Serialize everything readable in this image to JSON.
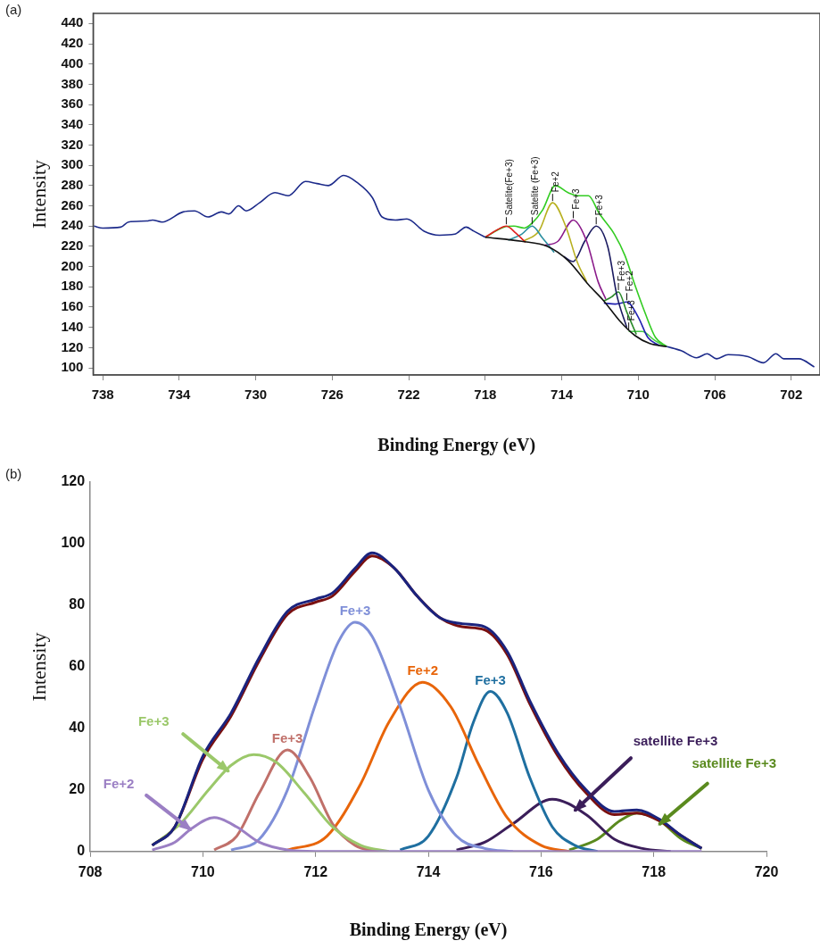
{
  "chart_data": [
    {
      "type": "line",
      "annotations": [
        "(a)"
      ],
      "xlabel": "Binding Energy (eV)",
      "ylabel": "Intensity",
      "xlim": [
        738.5,
        700.5
      ],
      "xticks": [
        738,
        734,
        730,
        726,
        722,
        718,
        714,
        710,
        706,
        702
      ],
      "ylim": [
        93,
        450
      ],
      "yticks": [
        100,
        120,
        140,
        160,
        180,
        200,
        220,
        240,
        260,
        280,
        300,
        320,
        340,
        360,
        380,
        400,
        420,
        440
      ],
      "grid": false,
      "legend": false,
      "marker": "none",
      "line_style": "solid",
      "series": [
        {
          "color": "#1c2a8a",
          "x": [
            738.46,
            738,
            737.06,
            736.66,
            735.7,
            735.4,
            734.9,
            733.8,
            733.2,
            732.5,
            731.8,
            731.4,
            730.9,
            730.5,
            729.8,
            729.0,
            728.3,
            727.4,
            726.8,
            726.2,
            725.4,
            724.7,
            723.9,
            723.4,
            722.7,
            722.1,
            721.2,
            720.4,
            719.6,
            719.0,
            718.6,
            718.0,
            717.03,
            716.5,
            715.96,
            715.55,
            715.0,
            714.34,
            713.67,
            713.13,
            712.6,
            712.06,
            711.25,
            710.7,
            710.18,
            709.64,
            709.1,
            708.51,
            707.76,
            706.95,
            706.4,
            705.9,
            705.3,
            704.26,
            703.46,
            702.8,
            702.4,
            701.6,
            700.8
          ],
          "values": [
            240,
            238,
            239,
            244,
            245,
            246,
            244,
            254,
            255,
            249,
            254,
            252,
            260,
            255,
            263,
            273,
            270,
            284,
            282,
            280,
            290,
            283,
            268,
            249,
            246,
            247,
            235,
            231,
            232,
            239,
            235,
            229,
            null,
            null,
            null,
            null,
            null,
            null,
            null,
            null,
            null,
            null,
            null,
            null,
            null,
            null,
            null,
            121,
            117,
            110,
            114,
            109,
            113,
            111,
            105,
            114,
            109,
            109,
            101
          ]
        },
        {
          "color": "#111111",
          "x": [
            718.0,
            716.1,
            714.75,
            713.67,
            712.6,
            711.8,
            711.0,
            710.18,
            709.4,
            708.51
          ],
          "values": [
            229,
            225,
            220,
            206,
            182,
            166,
            147,
            132,
            124,
            121
          ]
        },
        {
          "name": "Satelite(Fe+3)",
          "color": "#e02020",
          "x": [
            718.0,
            717.4,
            716.9,
            716.4,
            715.9
          ],
          "values": [
            229,
            236,
            240,
            233,
            224
          ]
        },
        {
          "name": "Satelite (Fe+3)",
          "color": "#2a8fa0",
          "x": [
            716.8,
            716.1,
            715.55,
            715.0,
            714.4
          ],
          "values": [
            226,
            232,
            240,
            228,
            214
          ]
        },
        {
          "name": "Fe+2",
          "color": "#b8b020",
          "x": [
            716.0,
            715.2,
            714.48,
            713.8,
            713.2,
            712.7
          ],
          "values": [
            225,
            235,
            263,
            240,
            205,
            185
          ]
        },
        {
          "name": "Fe+3",
          "color": "#8a1a8a",
          "x": [
            714.9,
            714.2,
            713.4,
            712.7,
            712.1,
            711.7
          ],
          "values": [
            221,
            225,
            246,
            225,
            185,
            168
          ]
        },
        {
          "name": "Fe+3",
          "color": "#1a1a60",
          "x": [
            713.9,
            713.4,
            712.8,
            712.2,
            711.6,
            711.1,
            710.6
          ],
          "values": [
            210,
            205,
            225,
            240,
            220,
            170,
            140
          ]
        },
        {
          "name": "Fe+3",
          "color": "#2a8a2a",
          "x": [
            711.8,
            711.4,
            711.04,
            710.6,
            710.1
          ],
          "values": [
            166,
            170,
            175,
            155,
            133
          ]
        },
        {
          "name": "Fe+2",
          "color": "#2020b0",
          "x": [
            711.8,
            711.2,
            710.6,
            710.0,
            709.5,
            708.9
          ],
          "values": [
            164,
            163,
            165,
            150,
            130,
            122
          ]
        },
        {
          "name": "Fe+3",
          "color": "#44cc44",
          "x": [
            710.5,
            709.8,
            709.2,
            708.7
          ],
          "values": [
            136,
            136,
            128,
            122
          ]
        },
        {
          "color": "#33cc22",
          "x": [
            718.0,
            717.03,
            716.5,
            715.96,
            715.55,
            715.0,
            714.34,
            713.67,
            713.13,
            712.6,
            712.06,
            711.25,
            710.7,
            710.18,
            709.64,
            709.1,
            708.51
          ],
          "values": [
            229,
            239,
            240,
            238,
            243,
            256,
            280,
            273,
            270,
            270,
            253,
            232,
            211,
            182,
            154,
            130,
            121
          ]
        }
      ]
    },
    {
      "type": "line",
      "annotations": [
        "(b)"
      ],
      "xlabel": "Binding Energy (eV)",
      "ylabel": "Intensity",
      "xlim": [
        708,
        720
      ],
      "xticks": [
        708,
        710,
        712,
        714,
        716,
        718,
        720
      ],
      "ylim": [
        0,
        120
      ],
      "yticks": [
        0,
        20,
        40,
        60,
        80,
        100,
        120
      ],
      "grid": false,
      "legend": false,
      "marker": "none",
      "line_style": "solid",
      "series": [
        {
          "color": "#1a237e",
          "x": [
            709.1,
            709.5,
            710.0,
            710.5,
            711.0,
            711.5,
            712.0,
            712.3,
            712.7,
            713.0,
            713.4,
            713.8,
            714.2,
            714.6,
            715.0,
            715.4,
            715.8,
            716.3,
            716.8,
            717.3,
            717.7,
            718.1,
            718.5,
            718.85
          ],
          "values": [
            2,
            8,
            31,
            45,
            63,
            78,
            82,
            84,
            92,
            97,
            92,
            83,
            76,
            74,
            73,
            65,
            49,
            32,
            20,
            13,
            13.5,
            10.5,
            5,
            1
          ]
        },
        {
          "color": "#7a1010",
          "x": [
            709.1,
            709.5,
            710.0,
            710.5,
            711.0,
            711.5,
            712.0,
            712.3,
            712.7,
            713.0,
            713.4,
            713.8,
            714.2,
            714.6,
            715.0,
            715.4,
            715.8,
            716.3,
            716.8,
            717.3,
            717.7,
            718.1,
            718.5,
            718.85
          ],
          "values": [
            2,
            8,
            30,
            44,
            62,
            77,
            81,
            83,
            91,
            96,
            92,
            83,
            76,
            73,
            72,
            64,
            48,
            31,
            19,
            12,
            12.5,
            10,
            5,
            1
          ]
        },
        {
          "name": "Fe+2",
          "color": "#9b7fc4",
          "x": [
            709.1,
            709.5,
            709.8,
            710.2,
            710.6,
            711.0,
            711.5,
            712.0,
            718.85
          ],
          "values": [
            0.5,
            3,
            7.5,
            11,
            8,
            3,
            0.5,
            0,
            0
          ]
        },
        {
          "name": "Fe+3",
          "color": "#9bc86a",
          "x": [
            709.1,
            709.6,
            710.1,
            710.5,
            710.9,
            711.3,
            711.8,
            712.3,
            712.8,
            713.3
          ],
          "values": [
            2,
            9,
            20,
            28,
            31.5,
            29,
            19,
            8,
            2,
            0
          ]
        },
        {
          "name": "Fe+3",
          "color": "#c0706a",
          "x": [
            710.2,
            710.6,
            711.0,
            711.5,
            711.9,
            712.3,
            712.7,
            713.1
          ],
          "values": [
            0.5,
            5,
            19,
            33,
            24,
            9,
            2,
            0
          ]
        },
        {
          "name": "Fe+3",
          "color": "#7f8fd8",
          "x": [
            710.5,
            711.0,
            711.5,
            712.0,
            712.4,
            712.7,
            713.0,
            713.5,
            714.0,
            714.5,
            715.0,
            715.5
          ],
          "values": [
            0.5,
            4,
            20,
            48,
            68,
            74.5,
            70,
            47,
            20,
            5,
            1,
            0
          ]
        },
        {
          "name": "Fe+2",
          "color": "#e8650a",
          "x": [
            711.5,
            712.2,
            712.8,
            713.3,
            713.9,
            714.4,
            714.9,
            715.4,
            716.0,
            716.5
          ],
          "values": [
            0.5,
            5,
            22,
            42,
            55,
            47,
            28,
            11,
            2,
            0
          ]
        },
        {
          "name": "Fe+3",
          "color": "#1f6fa0",
          "x": [
            713.5,
            714.0,
            714.5,
            714.8,
            715.1,
            715.4,
            715.8,
            716.2,
            716.6,
            717.0
          ],
          "values": [
            0.5,
            5,
            24,
            42,
            52,
            45,
            24,
            8,
            2,
            0
          ]
        },
        {
          "name": "satellite Fe+3",
          "color": "#3b1e5a",
          "x": [
            714.5,
            715.0,
            715.5,
            716.2,
            716.8,
            717.3,
            717.8,
            718.3
          ],
          "values": [
            0.5,
            3,
            9,
            17,
            12,
            4,
            1,
            0
          ]
        },
        {
          "name": "satellite Fe+3",
          "color": "#5a8a1e",
          "x": [
            716.5,
            717.0,
            717.4,
            717.7,
            718.1,
            718.5,
            718.85
          ],
          "values": [
            0.5,
            4,
            10,
            12.5,
            10,
            4,
            1
          ]
        }
      ]
    }
  ]
}
